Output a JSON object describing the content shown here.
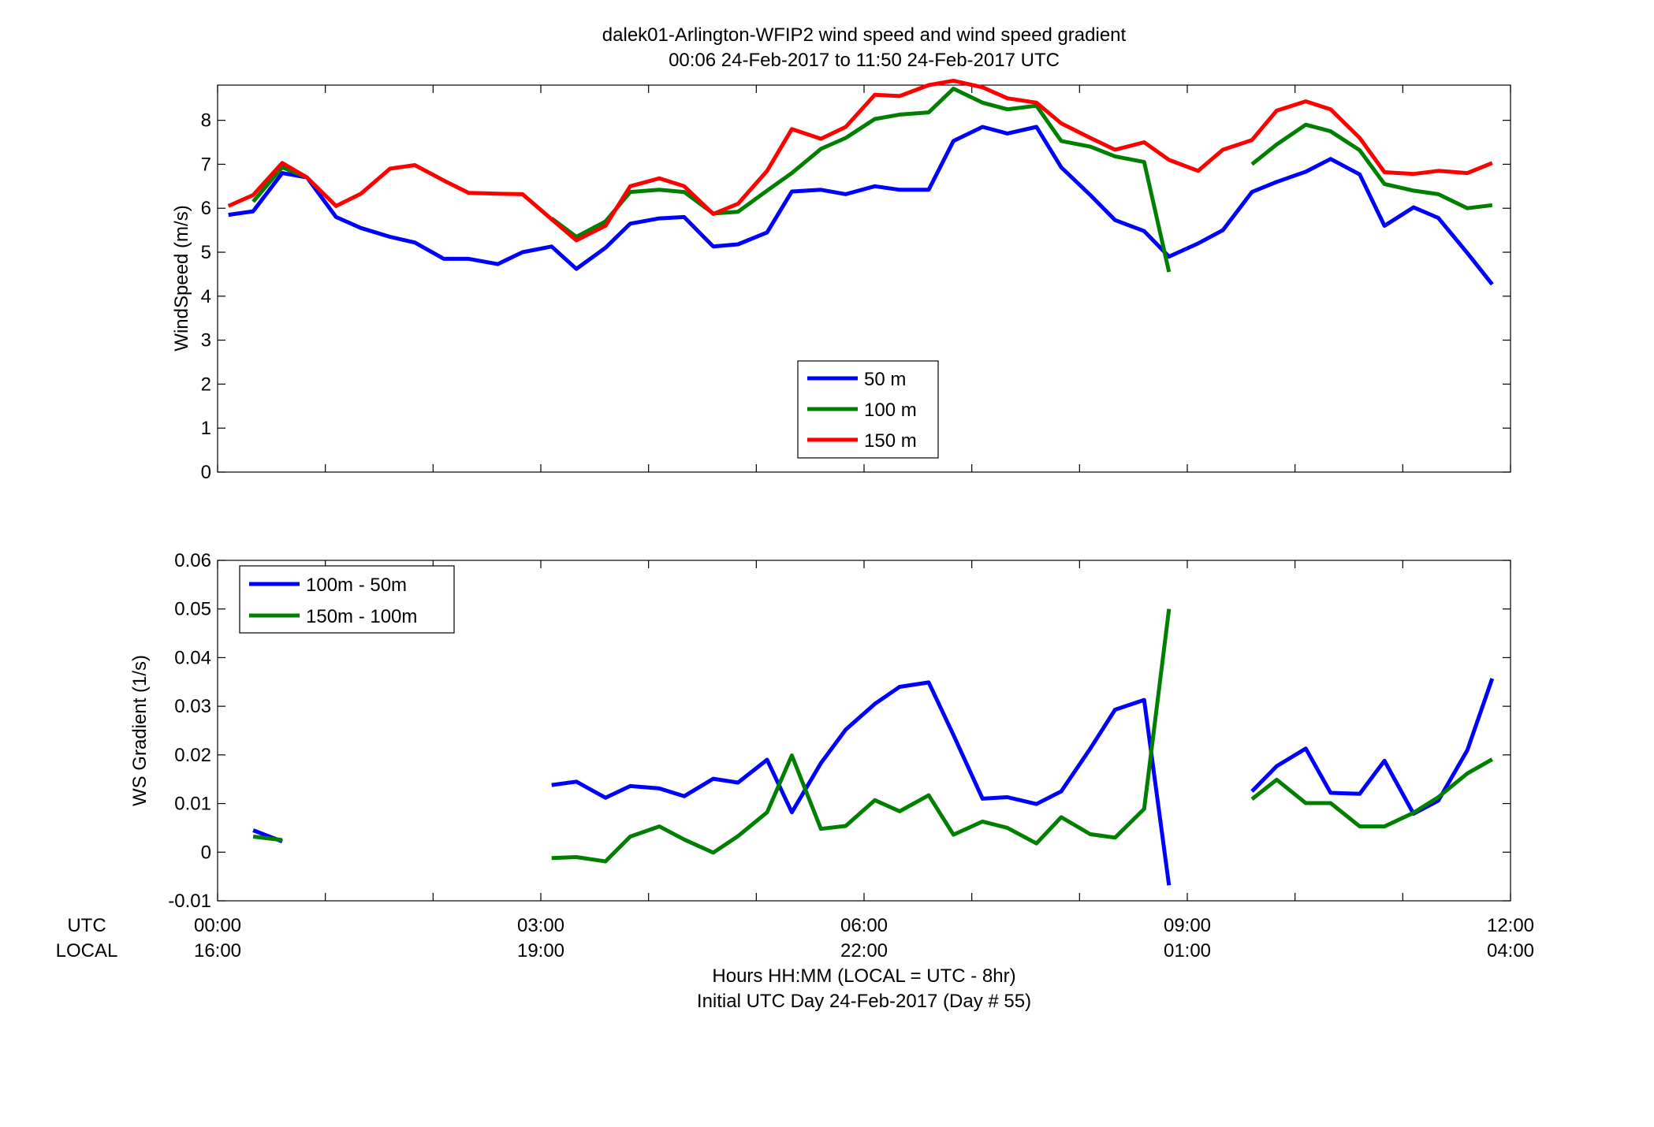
{
  "figure": {
    "title_line1": "dalek01-Arlington-WFIP2  wind speed and wind speed gradient",
    "title_line2": "00:06 24-Feb-2017 to 11:50 24-Feb-2017  UTC",
    "xlabel_line1": "Hours HH:MM  (LOCAL = UTC - 8hr)",
    "xlabel_line2": "Initial UTC Day 24-Feb-2017 (Day # 55)",
    "utc_row_label": "UTC",
    "local_row_label": "LOCAL",
    "utc_ticks": [
      "00:00",
      "03:00",
      "06:00",
      "09:00",
      "12:00"
    ],
    "local_ticks": [
      "16:00",
      "19:00",
      "22:00",
      "01:00",
      "04:00"
    ],
    "tick_hours": [
      0,
      3,
      6,
      9,
      12
    ]
  },
  "chart_data": [
    {
      "type": "line",
      "ylabel": "WindSpeed (m/s)",
      "xlim": [
        0,
        12
      ],
      "ylim": [
        0,
        8.8
      ],
      "yticks": [
        0,
        1,
        2,
        3,
        4,
        5,
        6,
        7,
        8
      ],
      "ytick_labels": [
        "0",
        "1",
        "2",
        "3",
        "4",
        "5",
        "6",
        "7",
        "8"
      ],
      "grid": false,
      "legend_position": "bottom-center",
      "x_unit": "hours UTC",
      "series": [
        {
          "name": "50 m",
          "color": "#0000ff",
          "points": [
            [
              0.1,
              5.85
            ],
            [
              0.33,
              5.93
            ],
            [
              0.6,
              6.8
            ],
            [
              0.83,
              6.7
            ],
            [
              1.1,
              5.8
            ],
            [
              1.33,
              5.55
            ],
            [
              1.6,
              5.35
            ],
            [
              1.83,
              5.22
            ],
            [
              2.1,
              4.85
            ],
            [
              2.33,
              4.85
            ],
            [
              2.6,
              4.73
            ],
            [
              2.83,
              5.0
            ],
            [
              3.1,
              5.13
            ],
            [
              3.33,
              4.62
            ],
            [
              3.6,
              5.1
            ],
            [
              3.83,
              5.65
            ],
            [
              4.1,
              5.77
            ],
            [
              4.33,
              5.8
            ],
            [
              4.6,
              5.13
            ],
            [
              4.83,
              5.18
            ],
            [
              5.1,
              5.45
            ],
            [
              5.33,
              6.38
            ],
            [
              5.6,
              6.42
            ],
            [
              5.83,
              6.32
            ],
            [
              6.1,
              6.5
            ],
            [
              6.33,
              6.42
            ],
            [
              6.6,
              6.42
            ],
            [
              6.83,
              7.53
            ],
            [
              7.1,
              7.85
            ],
            [
              7.33,
              7.7
            ],
            [
              7.6,
              7.85
            ],
            [
              7.83,
              6.93
            ],
            [
              8.1,
              6.3
            ],
            [
              8.33,
              5.73
            ],
            [
              8.6,
              5.48
            ],
            [
              8.83,
              4.9
            ],
            [
              9.1,
              5.2
            ],
            [
              9.33,
              5.5
            ],
            [
              9.6,
              6.37
            ],
            [
              9.83,
              6.6
            ],
            [
              10.1,
              6.83
            ],
            [
              10.33,
              7.12
            ],
            [
              10.6,
              6.77
            ],
            [
              10.83,
              5.6
            ],
            [
              11.1,
              6.02
            ],
            [
              11.33,
              5.78
            ],
            [
              11.6,
              4.98
            ],
            [
              11.83,
              4.27
            ]
          ]
        },
        {
          "name": "100 m",
          "color": "#007f00",
          "segments": [
            [
              [
                0.33,
                6.15
              ],
              [
                0.6,
                6.93
              ],
              [
                0.83,
                6.7
              ]
            ],
            [
              [
                3.1,
                5.77
              ],
              [
                3.33,
                5.35
              ],
              [
                3.6,
                5.7
              ],
              [
                3.83,
                6.37
              ],
              [
                4.1,
                6.42
              ],
              [
                4.33,
                6.37
              ],
              [
                4.6,
                5.88
              ],
              [
                4.83,
                5.92
              ],
              [
                5.1,
                6.4
              ],
              [
                5.33,
                6.8
              ],
              [
                5.6,
                7.35
              ],
              [
                5.83,
                7.6
              ],
              [
                6.1,
                8.03
              ],
              [
                6.33,
                8.13
              ],
              [
                6.6,
                8.18
              ],
              [
                6.83,
                8.72
              ],
              [
                7.1,
                8.4
              ],
              [
                7.33,
                8.25
              ],
              [
                7.6,
                8.33
              ],
              [
                7.83,
                7.53
              ],
              [
                8.1,
                7.4
              ],
              [
                8.33,
                7.18
              ],
              [
                8.6,
                7.05
              ],
              [
                8.83,
                4.55
              ]
            ],
            [
              [
                9.6,
                7.0
              ],
              [
                9.83,
                7.45
              ],
              [
                10.1,
                7.9
              ],
              [
                10.33,
                7.75
              ],
              [
                10.6,
                7.32
              ],
              [
                10.83,
                6.55
              ],
              [
                11.1,
                6.4
              ],
              [
                11.33,
                6.32
              ],
              [
                11.6,
                6.0
              ],
              [
                11.83,
                6.07
              ]
            ]
          ]
        },
        {
          "name": "150 m",
          "color": "#ff0000",
          "points": [
            [
              0.1,
              6.05
            ],
            [
              0.33,
              6.3
            ],
            [
              0.6,
              7.03
            ],
            [
              0.83,
              6.7
            ],
            [
              1.1,
              6.05
            ],
            [
              1.33,
              6.33
            ],
            [
              1.6,
              6.9
            ],
            [
              1.83,
              6.98
            ],
            [
              2.1,
              6.63
            ],
            [
              2.33,
              6.35
            ],
            [
              2.6,
              6.33
            ],
            [
              2.83,
              6.32
            ],
            [
              3.1,
              5.75
            ],
            [
              3.33,
              5.27
            ],
            [
              3.6,
              5.6
            ],
            [
              3.83,
              6.5
            ],
            [
              4.1,
              6.68
            ],
            [
              4.33,
              6.5
            ],
            [
              4.6,
              5.87
            ],
            [
              4.83,
              6.1
            ],
            [
              5.1,
              6.85
            ],
            [
              5.33,
              7.8
            ],
            [
              5.6,
              7.58
            ],
            [
              5.83,
              7.85
            ],
            [
              6.1,
              8.58
            ],
            [
              6.33,
              8.55
            ],
            [
              6.6,
              8.8
            ],
            [
              6.83,
              8.9
            ],
            [
              7.1,
              8.75
            ],
            [
              7.33,
              8.5
            ],
            [
              7.6,
              8.4
            ],
            [
              7.83,
              7.93
            ],
            [
              8.1,
              7.6
            ],
            [
              8.33,
              7.33
            ],
            [
              8.6,
              7.5
            ],
            [
              8.83,
              7.1
            ],
            [
              9.1,
              6.85
            ],
            [
              9.33,
              7.33
            ],
            [
              9.6,
              7.55
            ],
            [
              9.83,
              8.22
            ],
            [
              10.1,
              8.43
            ],
            [
              10.33,
              8.25
            ],
            [
              10.6,
              7.6
            ],
            [
              10.83,
              6.82
            ],
            [
              11.1,
              6.78
            ],
            [
              11.33,
              6.85
            ],
            [
              11.6,
              6.8
            ],
            [
              11.83,
              7.03
            ]
          ]
        }
      ]
    },
    {
      "type": "line",
      "ylabel": "WS Gradient (1/s)",
      "xlim": [
        0,
        12
      ],
      "ylim": [
        -0.01,
        0.06
      ],
      "yticks": [
        -0.01,
        0,
        0.01,
        0.02,
        0.03,
        0.04,
        0.05,
        0.06
      ],
      "ytick_labels": [
        "-0.01",
        "0",
        "0.01",
        "0.02",
        "0.03",
        "0.04",
        "0.05",
        "0.06"
      ],
      "grid": false,
      "legend_position": "top-left",
      "x_unit": "hours UTC",
      "series": [
        {
          "name": "100m - 50m",
          "color": "#0000ff",
          "segments": [
            [
              [
                0.33,
                0.0045
              ],
              [
                0.6,
                0.0022
              ]
            ],
            [
              [
                3.1,
                0.0138
              ],
              [
                3.33,
                0.0145
              ],
              [
                3.6,
                0.0112
              ],
              [
                3.83,
                0.0136
              ],
              [
                4.1,
                0.0131
              ],
              [
                4.33,
                0.0115
              ],
              [
                4.6,
                0.0151
              ],
              [
                4.83,
                0.0143
              ],
              [
                5.1,
                0.019
              ],
              [
                5.33,
                0.0082
              ],
              [
                5.6,
                0.0183
              ],
              [
                5.83,
                0.0252
              ],
              [
                6.1,
                0.0305
              ],
              [
                6.33,
                0.034
              ],
              [
                6.6,
                0.0349
              ],
              [
                6.83,
                0.0241
              ],
              [
                7.1,
                0.011
              ],
              [
                7.33,
                0.0113
              ],
              [
                7.6,
                0.0099
              ],
              [
                7.83,
                0.0125
              ],
              [
                8.1,
                0.0213
              ],
              [
                8.33,
                0.0293
              ],
              [
                8.6,
                0.0313
              ],
              [
                8.83,
                -0.0068
              ]
            ],
            [
              [
                9.6,
                0.0125
              ],
              [
                9.83,
                0.0177
              ],
              [
                10.1,
                0.0213
              ],
              [
                10.33,
                0.0122
              ],
              [
                10.6,
                0.012
              ],
              [
                10.83,
                0.0188
              ],
              [
                11.1,
                0.0079
              ],
              [
                11.33,
                0.0106
              ],
              [
                11.6,
                0.021
              ],
              [
                11.83,
                0.0357
              ]
            ]
          ]
        },
        {
          "name": "150m - 100m",
          "color": "#007f00",
          "segments": [
            [
              [
                0.33,
                0.0032
              ],
              [
                0.6,
                0.0025
              ]
            ],
            [
              [
                3.1,
                -0.0012
              ],
              [
                3.33,
                -0.001
              ],
              [
                3.6,
                -0.0019
              ],
              [
                3.83,
                0.0032
              ],
              [
                4.1,
                0.0053
              ],
              [
                4.33,
                0.0026
              ],
              [
                4.6,
                -0.0001
              ],
              [
                4.83,
                0.0033
              ],
              [
                5.1,
                0.0082
              ],
              [
                5.33,
                0.0199
              ],
              [
                5.6,
                0.0048
              ],
              [
                5.83,
                0.0054
              ],
              [
                6.1,
                0.0107
              ],
              [
                6.33,
                0.0084
              ],
              [
                6.6,
                0.0117
              ],
              [
                6.83,
                0.0036
              ],
              [
                7.1,
                0.0063
              ],
              [
                7.33,
                0.005
              ],
              [
                7.6,
                0.0018
              ],
              [
                7.83,
                0.0072
              ],
              [
                8.1,
                0.0037
              ],
              [
                8.33,
                0.003
              ],
              [
                8.6,
                0.0089
              ],
              [
                8.83,
                0.05
              ]
            ],
            [
              [
                9.6,
                0.0109
              ],
              [
                9.83,
                0.0149
              ],
              [
                10.1,
                0.0101
              ],
              [
                10.33,
                0.0101
              ],
              [
                10.6,
                0.0053
              ],
              [
                10.83,
                0.0053
              ],
              [
                11.1,
                0.0081
              ],
              [
                11.33,
                0.0113
              ],
              [
                11.6,
                0.0162
              ],
              [
                11.83,
                0.0191
              ]
            ]
          ]
        }
      ]
    }
  ]
}
